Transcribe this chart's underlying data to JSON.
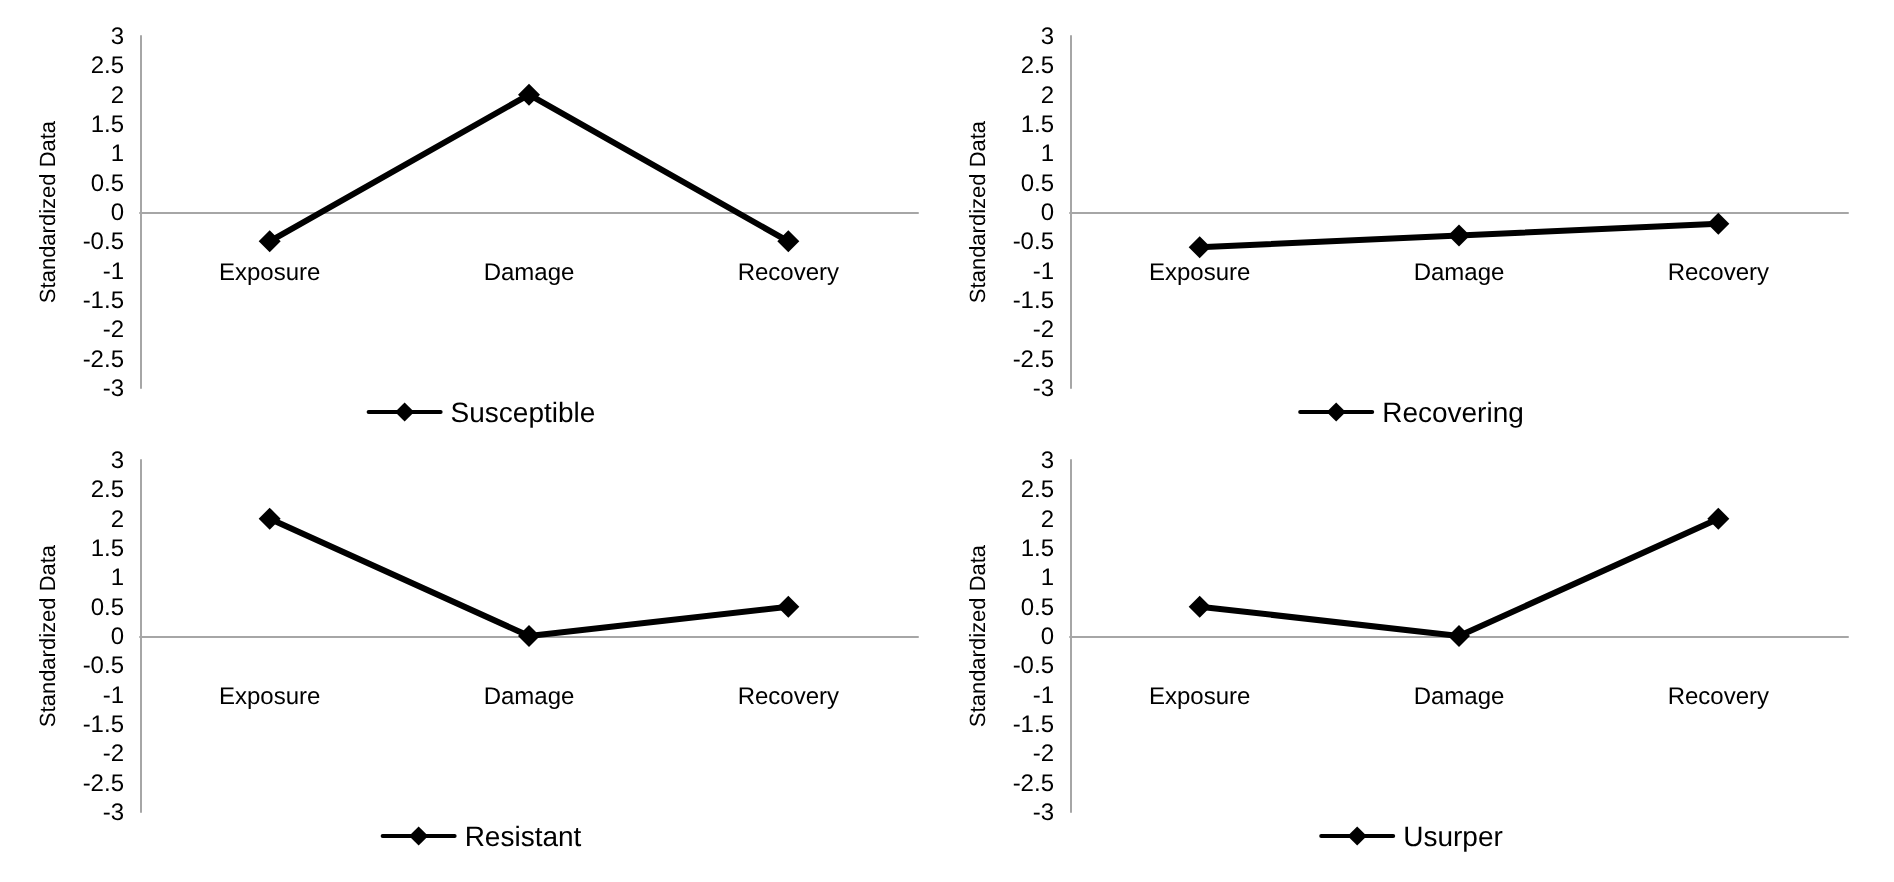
{
  "chart_data": [
    {
      "type": "line",
      "categories": [
        "Exposure",
        "Damage",
        "Recovery"
      ],
      "ylabel": "Standardized Data",
      "ylim": [
        -3,
        3
      ],
      "yticks": [
        -3,
        -2.5,
        -2,
        -1.5,
        -1,
        -0.5,
        0,
        0.5,
        1,
        1.5,
        2,
        2.5,
        3
      ],
      "grid": false,
      "legend": "bottom",
      "marker": "diamond",
      "line_style": "solid",
      "series": [
        {
          "name": "Susceptible",
          "color": "#000000",
          "values": [
            -0.5,
            2,
            -0.5
          ]
        }
      ]
    },
    {
      "type": "line",
      "categories": [
        "Exposure",
        "Damage",
        "Recovery"
      ],
      "ylabel": "Standardized Data",
      "ylim": [
        -3,
        3
      ],
      "yticks": [
        -3,
        -2.5,
        -2,
        -1.5,
        -1,
        -0.5,
        0,
        0.5,
        1,
        1.5,
        2,
        2.5,
        3
      ],
      "grid": false,
      "legend": "bottom",
      "marker": "diamond",
      "line_style": "solid",
      "series": [
        {
          "name": "Recovering",
          "color": "#000000",
          "values": [
            -0.6,
            -0.4,
            -0.2
          ]
        }
      ]
    },
    {
      "type": "line",
      "categories": [
        "Exposure",
        "Damage",
        "Recovery"
      ],
      "ylabel": "Standardized Data",
      "ylim": [
        -3,
        3
      ],
      "yticks": [
        -3,
        -2.5,
        -2,
        -1.5,
        -1,
        -0.5,
        0,
        0.5,
        1,
        1.5,
        2,
        2.5,
        3
      ],
      "grid": false,
      "legend": "bottom",
      "marker": "diamond",
      "line_style": "solid",
      "series": [
        {
          "name": "Resistant",
          "color": "#000000",
          "values": [
            2,
            0,
            0.5
          ]
        }
      ]
    },
    {
      "type": "line",
      "categories": [
        "Exposure",
        "Damage",
        "Recovery"
      ],
      "ylabel": "Standardized Data",
      "ylim": [
        -3,
        3
      ],
      "yticks": [
        -3,
        -2.5,
        -2,
        -1.5,
        -1,
        -0.5,
        0,
        0.5,
        1,
        1.5,
        2,
        2.5,
        3
      ],
      "grid": false,
      "legend": "bottom",
      "marker": "diamond",
      "line_style": "solid",
      "series": [
        {
          "name": "Usurper",
          "color": "#000000",
          "values": [
            0.5,
            0,
            2
          ]
        }
      ]
    }
  ]
}
